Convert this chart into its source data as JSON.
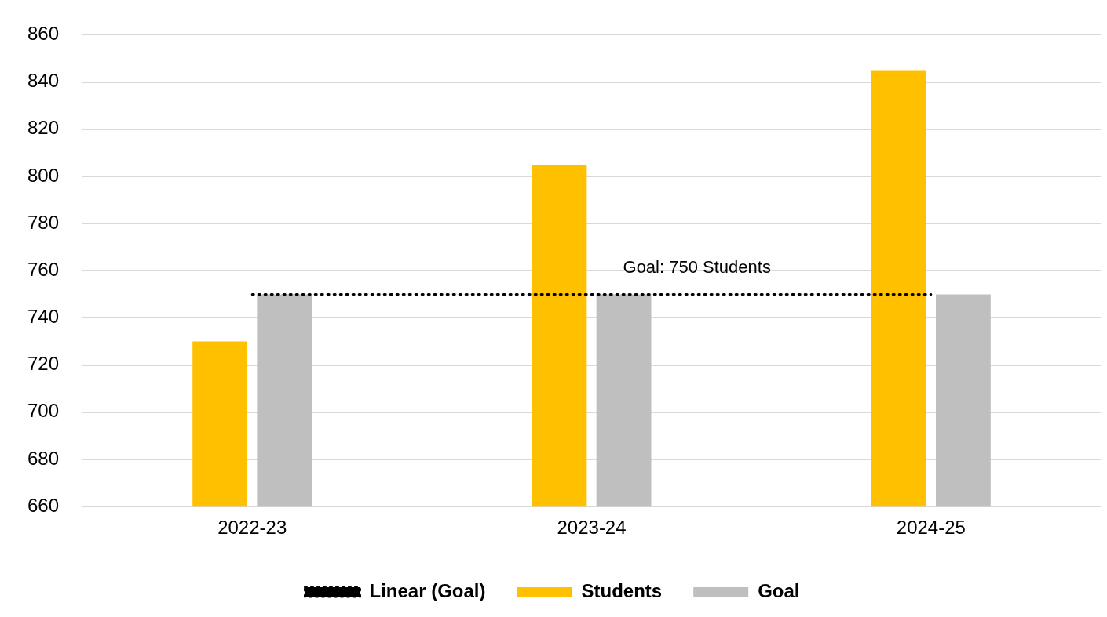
{
  "chart_data": {
    "type": "bar",
    "categories": [
      "2022-23",
      "2023-24",
      "2024-25"
    ],
    "series": [
      {
        "name": "Students",
        "color": "#ffc000",
        "values": [
          730,
          805,
          845
        ]
      },
      {
        "name": "Goal",
        "color": "#bfbfbf",
        "values": [
          750,
          750,
          750
        ]
      },
      {
        "name": "Linear (Goal)",
        "type": "line",
        "color": "#000000",
        "line_style": "dotted",
        "marker": "none",
        "values": [
          750,
          750,
          750
        ]
      }
    ],
    "ylim": [
      660,
      860
    ],
    "yticks": [
      660,
      680,
      700,
      720,
      740,
      760,
      780,
      800,
      820,
      840,
      860
    ],
    "grid": "y",
    "legend": "bottom",
    "annotations": [
      {
        "text": "Goal: 750 Students",
        "x": "2023-24",
        "y": 750
      }
    ]
  }
}
